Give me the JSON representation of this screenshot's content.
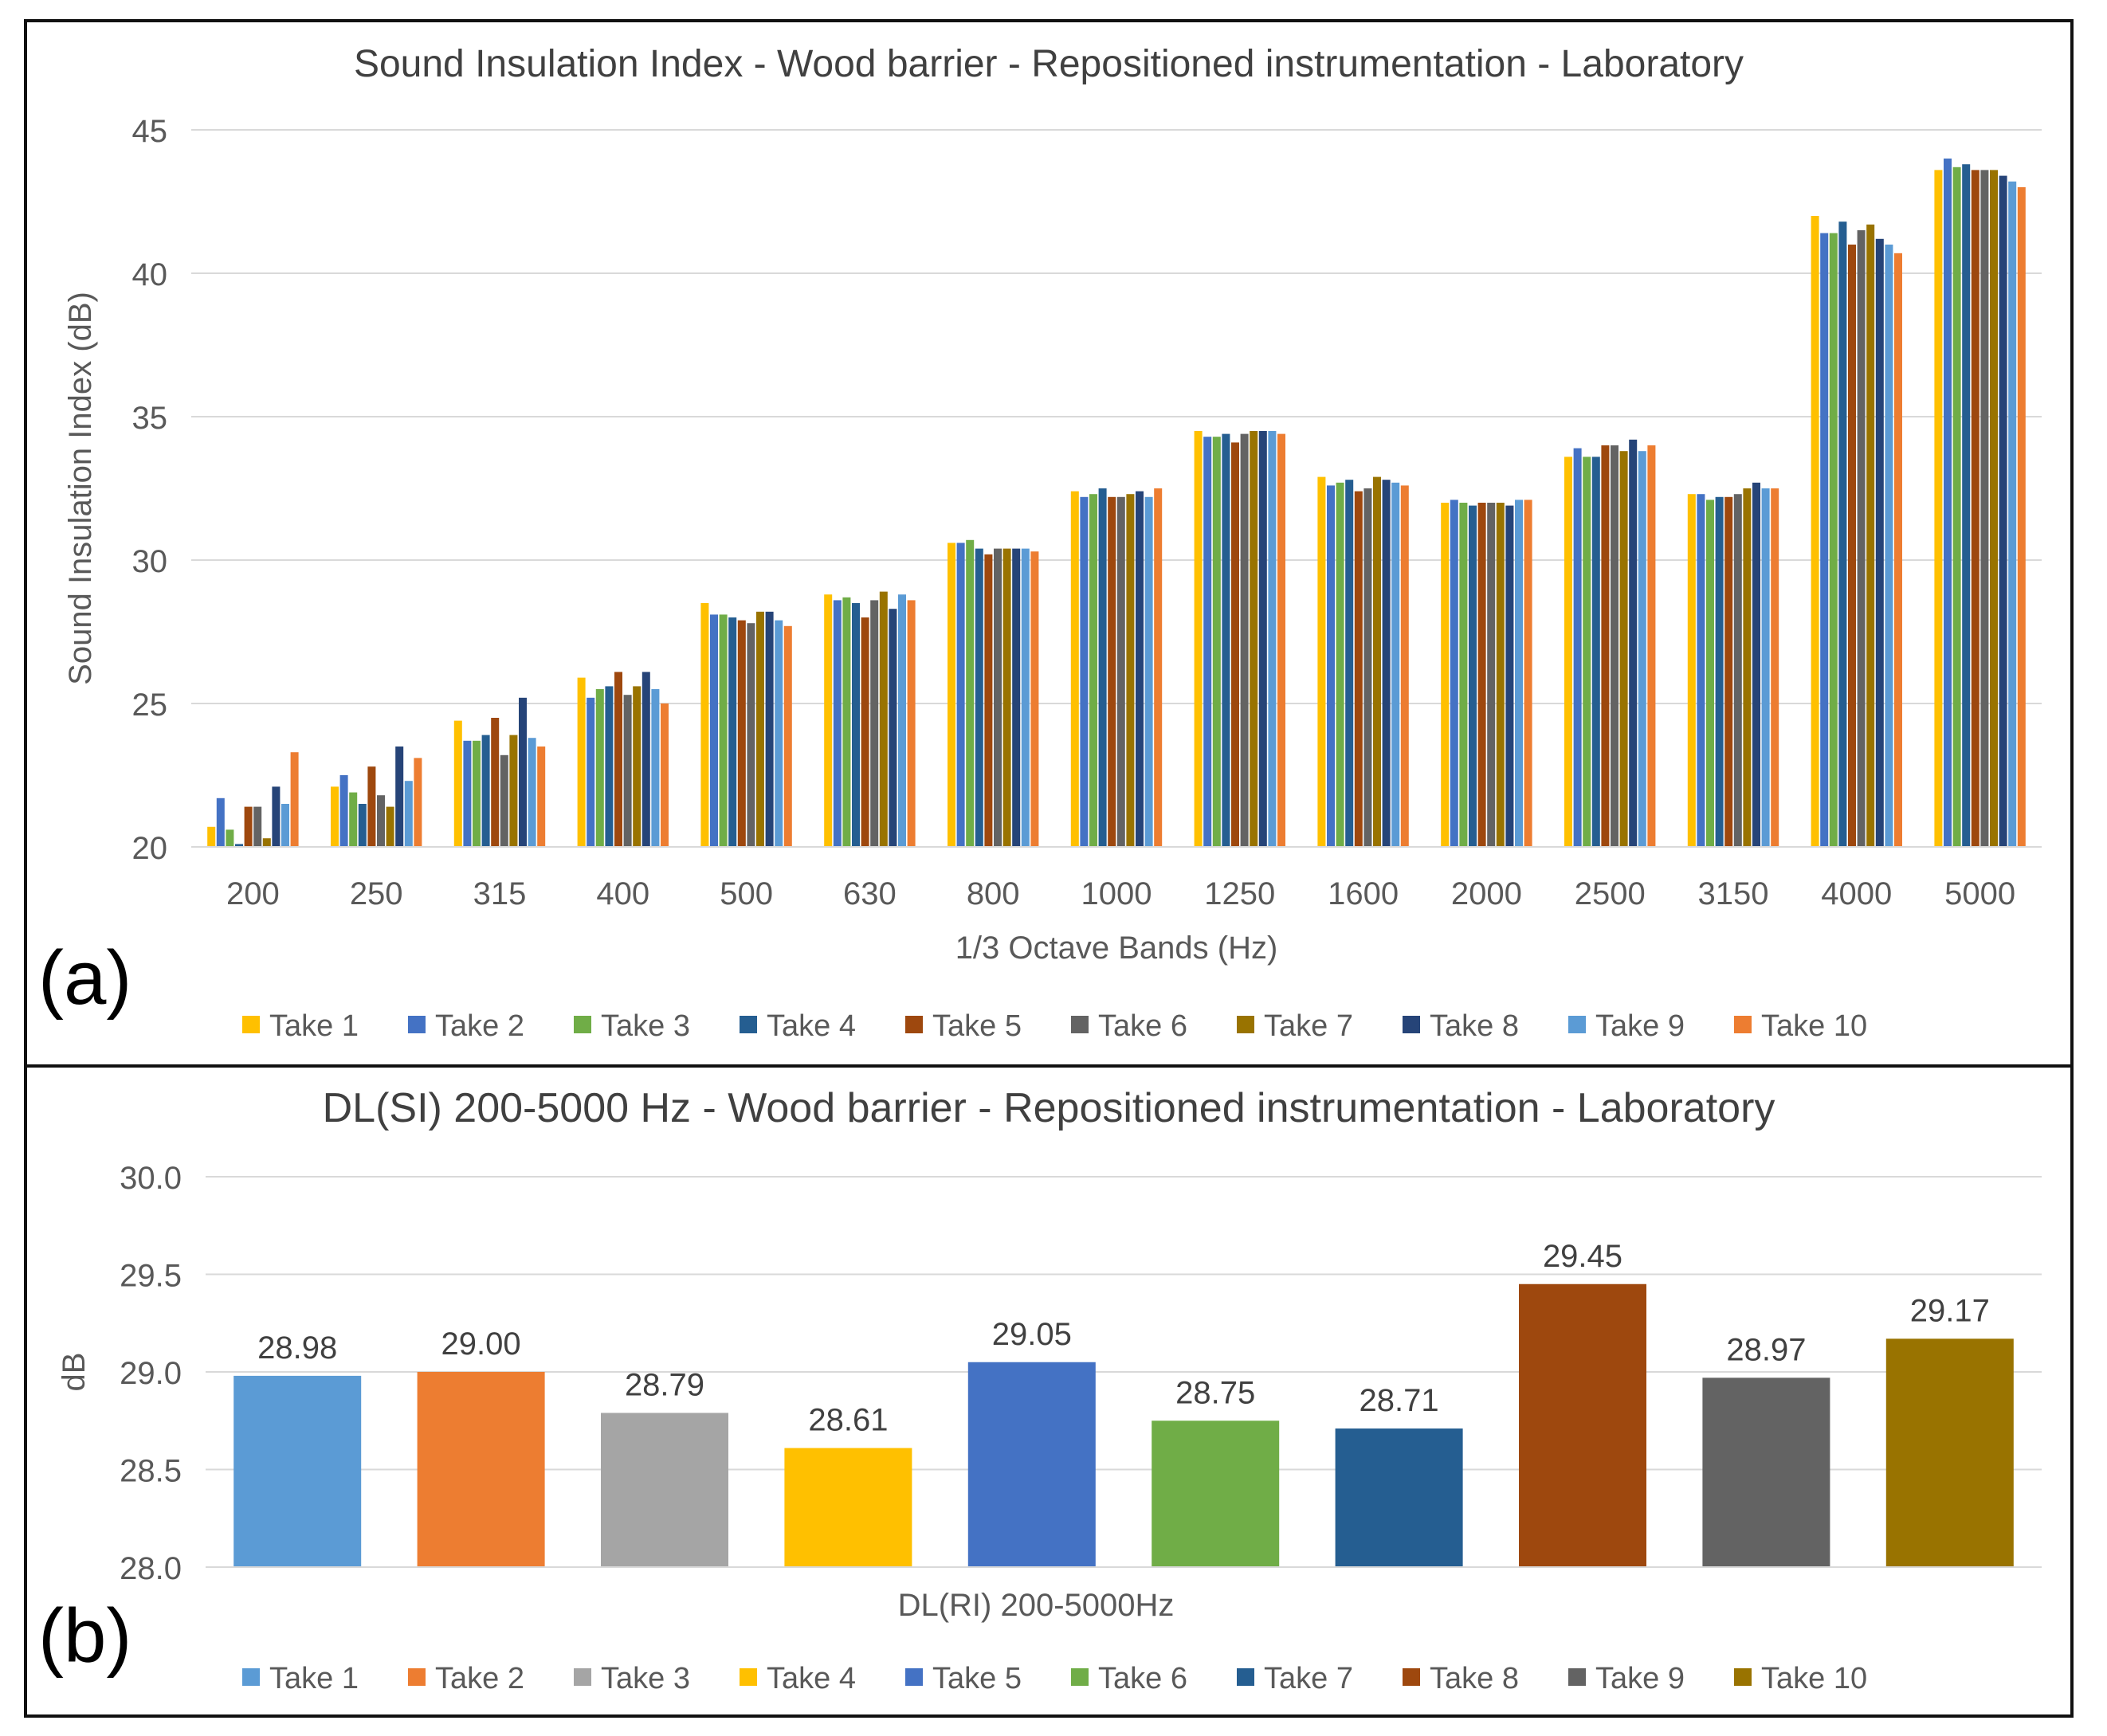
{
  "chart_data": [
    {
      "type": "bar",
      "panel_label": "(a)",
      "title": "Sound Insulation Index - Wood barrier - Repositioned instrumentation - Laboratory",
      "xlabel": "1/3 Octave Bands (Hz)",
      "ylabel": "Sound Insulation Index (dB)",
      "ylim": [
        20,
        45
      ],
      "yticks": [
        "20",
        "25",
        "30",
        "35",
        "40",
        "45"
      ],
      "grid": true,
      "legend_position": "bottom",
      "categories": [
        "200",
        "250",
        "315",
        "400",
        "500",
        "630",
        "800",
        "1000",
        "1250",
        "1600",
        "2000",
        "2500",
        "3150",
        "4000",
        "5000"
      ],
      "series": [
        {
          "name": "Take 1",
          "color": "#FFC000",
          "values": [
            20.7,
            22.1,
            24.4,
            25.9,
            28.5,
            28.8,
            30.6,
            32.4,
            34.5,
            32.9,
            32.0,
            33.6,
            32.3,
            42.0,
            43.6
          ]
        },
        {
          "name": "Take 2",
          "color": "#4472C4",
          "values": [
            21.7,
            22.5,
            23.7,
            25.2,
            28.1,
            28.6,
            30.6,
            32.2,
            34.3,
            32.6,
            32.1,
            33.9,
            32.3,
            41.4,
            44.0
          ]
        },
        {
          "name": "Take 3",
          "color": "#70AD47",
          "values": [
            20.6,
            21.9,
            23.7,
            25.5,
            28.1,
            28.7,
            30.7,
            32.3,
            34.3,
            32.7,
            32.0,
            33.6,
            32.1,
            41.4,
            43.7
          ]
        },
        {
          "name": "Take 4",
          "color": "#255E91",
          "values": [
            20.1,
            21.5,
            23.9,
            25.6,
            28.0,
            28.5,
            30.4,
            32.5,
            34.4,
            32.8,
            31.9,
            33.6,
            32.2,
            41.8,
            43.8
          ]
        },
        {
          "name": "Take 5",
          "color": "#9E480E",
          "values": [
            21.4,
            22.8,
            24.5,
            26.1,
            27.9,
            28.0,
            30.2,
            32.2,
            34.1,
            32.4,
            32.0,
            34.0,
            32.2,
            41.0,
            43.6
          ]
        },
        {
          "name": "Take 6",
          "color": "#636363",
          "values": [
            21.4,
            21.8,
            23.2,
            25.3,
            27.8,
            28.6,
            30.4,
            32.2,
            34.4,
            32.5,
            32.0,
            34.0,
            32.3,
            41.5,
            43.6
          ]
        },
        {
          "name": "Take 7",
          "color": "#997300",
          "values": [
            20.3,
            21.4,
            23.9,
            25.6,
            28.2,
            28.9,
            30.4,
            32.3,
            34.5,
            32.9,
            32.0,
            33.8,
            32.5,
            41.7,
            43.6
          ]
        },
        {
          "name": "Take 8",
          "color": "#264478",
          "values": [
            22.1,
            23.5,
            25.2,
            26.1,
            28.2,
            28.3,
            30.4,
            32.4,
            34.5,
            32.8,
            31.9,
            34.2,
            32.7,
            41.2,
            43.4
          ]
        },
        {
          "name": "Take 9",
          "color": "#5B9BD5",
          "values": [
            21.5,
            22.3,
            23.8,
            25.5,
            27.9,
            28.8,
            30.4,
            32.2,
            34.5,
            32.7,
            32.1,
            33.8,
            32.5,
            41.0,
            43.2
          ]
        },
        {
          "name": "Take 10",
          "color": "#ED7D31",
          "values": [
            23.3,
            23.1,
            23.5,
            25.0,
            27.7,
            28.6,
            30.3,
            32.5,
            34.4,
            32.6,
            32.1,
            34.0,
            32.5,
            40.7,
            43.0
          ]
        }
      ]
    },
    {
      "type": "bar",
      "panel_label": "(b)",
      "title": "DL(SI) 200-5000 Hz - Wood barrier - Repositioned instrumentation - Laboratory",
      "xlabel": "DL(RI) 200-5000Hz",
      "ylabel": "dB",
      "ylim": [
        28.0,
        30.0
      ],
      "yticks": [
        "28.0",
        "28.5",
        "29.0",
        "29.5",
        "30.0"
      ],
      "grid": true,
      "legend_position": "bottom",
      "categories": [
        "Take 1",
        "Take 2",
        "Take 3",
        "Take 4",
        "Take 5",
        "Take 6",
        "Take 7",
        "Take 8",
        "Take 9",
        "Take 10"
      ],
      "colors": [
        "#5B9BD5",
        "#ED7D31",
        "#A5A5A5",
        "#FFC000",
        "#4472C4",
        "#70AD47",
        "#255E91",
        "#9E480E",
        "#636363",
        "#997300"
      ],
      "values": [
        28.98,
        29.0,
        28.79,
        28.61,
        29.05,
        28.75,
        28.71,
        29.45,
        28.97,
        29.17
      ],
      "data_labels": [
        "28.98",
        "29.00",
        "28.79",
        "28.61",
        "29.05",
        "28.75",
        "28.71",
        "29.45",
        "28.97",
        "29.17"
      ]
    }
  ]
}
